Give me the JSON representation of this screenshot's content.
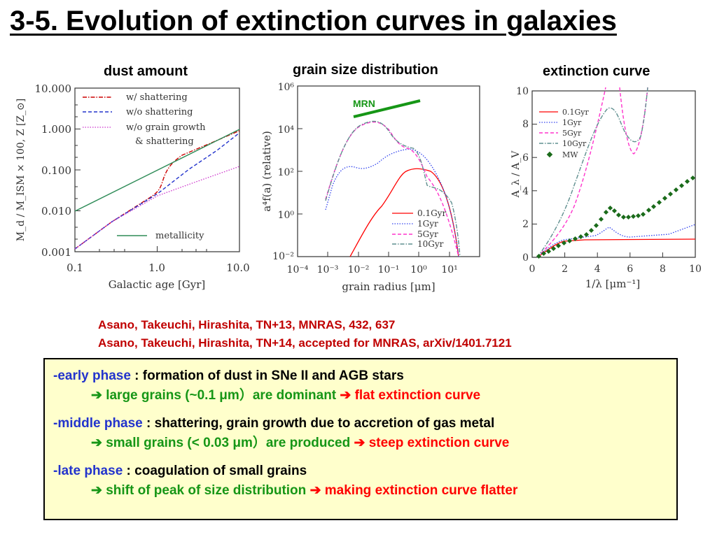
{
  "slide": {
    "title": "3-5. Evolution of extinction curves in galaxies"
  },
  "panels": {
    "dust_amount": "dust amount",
    "grain_size": "grain size distribution",
    "extinction": "extinction curve"
  },
  "plot1": {
    "ylabel": "M_d / M_ISM × 100, Z [Z_⊙]",
    "xlabel": "Galactic age [Gyr]",
    "yticks": [
      "10.000",
      "1.000",
      "0.100",
      "0.010",
      "0.001"
    ],
    "xticks": [
      "0.1",
      "1.0",
      "10.0"
    ],
    "legend": [
      "w/ shattering",
      "w/o shattering",
      "w/o grain growth",
      "& shattering"
    ],
    "legend2": "metallicity"
  },
  "plot2": {
    "ylabel": "a⁴f(a) (relative)",
    "xlabel": "grain radius [μm]",
    "yticks": [
      "10⁶",
      "10⁴",
      "10²",
      "10⁰",
      "10⁻²"
    ],
    "xticks": [
      "10⁻⁴",
      "10⁻³",
      "10⁻²",
      "10⁻¹",
      "10⁰",
      "10¹"
    ],
    "mrn": "MRN",
    "legend": [
      "0.1Gyr",
      "1Gyr",
      "5Gyr",
      "10Gyr"
    ]
  },
  "plot3": {
    "ylabel": "A_λ / A_V",
    "xlabel": "1/λ [μm⁻¹]",
    "yticks": [
      "10",
      "8",
      "6",
      "4",
      "2",
      "0"
    ],
    "xticks": [
      "0",
      "2",
      "4",
      "6",
      "8",
      "10"
    ],
    "legend": [
      "0.1Gyr",
      "1Gyr",
      "5Gyr",
      "10Gyr",
      "MW"
    ]
  },
  "colors": {
    "red": "#ff0000",
    "blue": "#2233cc",
    "green": "#169616",
    "dark_green": "#1a6b1a",
    "teal": "#2e8b57",
    "magenta": "#ff33cc",
    "slate": "#5f8f8f"
  },
  "references": {
    "line1": "Asano, Takeuchi, Hirashita, TN+13, MNRAS, 432, 637",
    "line2": "Asano, Takeuchi, Hirashita, TN+14, accepted for MNRAS, arXiv/1401.7121"
  },
  "summary": {
    "early": {
      "label": "-early phase",
      "desc": " : formation of dust in SNe II and AGB stars",
      "arrow": "➔ ",
      "result": "large grains (~0.1 μm）are dominant ",
      "arrow2": "➔ ",
      "effect": "flat extinction curve"
    },
    "middle": {
      "label": "-middle phase",
      "desc": " : shattering, grain growth due to accretion of gas metal",
      "arrow": "➔ ",
      "result": "small grains (< 0.03 μm）are produced ",
      "arrow2": "➔ ",
      "effect": "steep extinction curve"
    },
    "late": {
      "label": "-late phase",
      "desc": " : coagulation of small grains",
      "arrow": "➔ ",
      "result": "shift of peak of size distribution ",
      "arrow2": "➔ ",
      "effect": "making extinction curve flatter"
    }
  }
}
